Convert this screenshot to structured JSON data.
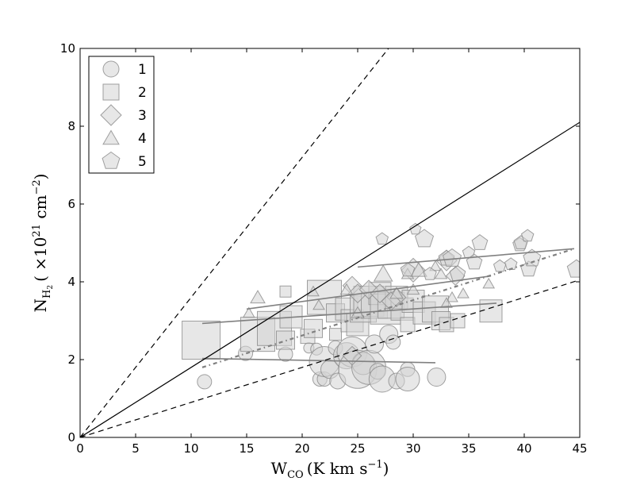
{
  "chart_data": {
    "type": "scatter",
    "title": "",
    "xlabel": {
      "main": "W",
      "sub": "CO",
      "unit_pre": "(K km s",
      "unit_sup": "−1",
      "unit_post": ")"
    },
    "ylabel": {
      "main": "N",
      "sub": "H",
      "subsub": "2",
      "unit_pre": "( ×10",
      "unit_sup1": "21",
      "unit_mid": " cm",
      "unit_sup2": "−2",
      "unit_post": ")"
    },
    "xlim": [
      0,
      45
    ],
    "ylim": [
      0,
      10
    ],
    "xticks": [
      0,
      5,
      10,
      15,
      20,
      25,
      30,
      35,
      40,
      45
    ],
    "yticks": [
      0,
      2,
      4,
      6,
      8,
      10
    ],
    "grid": false,
    "legend_placement": "top-left",
    "colors": {
      "marker_fill": "#d3d3d3",
      "marker_edge": "#8a8a8a",
      "fit_line": "#808080",
      "reference_line": "#000000"
    },
    "reference_lines": [
      {
        "slope": 0.36,
        "style": "dashed"
      },
      {
        "slope": 0.18,
        "style": "solid"
      },
      {
        "slope": 0.09,
        "style": "dashed"
      }
    ],
    "fit_lines": [
      {
        "series": "1",
        "x": [
          11,
          32
        ],
        "y": [
          2.03,
          1.92
        ],
        "style": "solid"
      },
      {
        "series": "2",
        "x": [
          11,
          37.5
        ],
        "y": [
          2.93,
          3.45
        ],
        "style": "solid"
      },
      {
        "series": "3",
        "x": [
          15,
          37
        ],
        "y": [
          3.3,
          4.15
        ],
        "style": "solid"
      },
      {
        "series": "4",
        "x": [
          11,
          44.5
        ],
        "y": [
          1.8,
          4.85
        ],
        "style": "dashdot"
      },
      {
        "series": "5",
        "x": [
          25,
          44.5
        ],
        "y": [
          4.38,
          4.85
        ],
        "style": "solid"
      }
    ],
    "series": [
      {
        "name": "1",
        "marker": "circle",
        "points": [
          [
            11.2,
            1.43,
            1
          ],
          [
            14.9,
            2.16,
            1
          ],
          [
            18.5,
            2.14,
            1
          ],
          [
            20.6,
            2.3,
            0.5
          ],
          [
            21.3,
            2.27,
            0.7
          ],
          [
            21.6,
            1.5,
            1
          ],
          [
            22,
            1.5,
            1
          ],
          [
            22,
            1.95,
            3
          ],
          [
            22.5,
            1.75,
            1.5
          ],
          [
            23,
            2.3,
            1
          ],
          [
            23.2,
            1.45,
            1.2
          ],
          [
            24,
            2.1,
            2.5
          ],
          [
            24.5,
            2.2,
            3
          ],
          [
            25,
            1.75,
            4
          ],
          [
            25.5,
            1.9,
            2
          ],
          [
            26,
            1.8,
            3.5
          ],
          [
            26.5,
            2.4,
            1.5
          ],
          [
            26.8,
            1.7,
            1.2
          ],
          [
            27.2,
            1.5,
            2.5
          ],
          [
            27.8,
            2.65,
            1.5
          ],
          [
            28.2,
            2.45,
            1
          ],
          [
            28.5,
            1.45,
            1.2
          ],
          [
            29.5,
            1.75,
            1
          ],
          [
            29.5,
            1.5,
            2.2
          ],
          [
            32.1,
            1.55,
            1.5
          ]
        ]
      },
      {
        "name": "2",
        "marker": "square",
        "points": [
          [
            10.9,
            2.5,
            4
          ],
          [
            16,
            2.65,
            3.5
          ],
          [
            17.5,
            2.8,
            3.5
          ],
          [
            18.5,
            2.5,
            1.5
          ],
          [
            18.5,
            3.75,
            0.6
          ],
          [
            19,
            3.1,
            2
          ],
          [
            20.5,
            2.6,
            1
          ],
          [
            21,
            2.8,
            1.5
          ],
          [
            22,
            3.6,
            3.5
          ],
          [
            23,
            2.65,
            0.7
          ],
          [
            23,
            3.2,
            1.5
          ],
          [
            24,
            3.3,
            2
          ],
          [
            24.5,
            3.0,
            2
          ],
          [
            25,
            2.9,
            2
          ],
          [
            25.5,
            3.3,
            2.5
          ],
          [
            26,
            3.5,
            3
          ],
          [
            26.5,
            3.4,
            2.5
          ],
          [
            27,
            3.7,
            2
          ],
          [
            27.5,
            3.3,
            3
          ],
          [
            28,
            3.4,
            2.5
          ],
          [
            28.5,
            3.6,
            2
          ],
          [
            29,
            3.3,
            2
          ],
          [
            29.5,
            2.9,
            1
          ],
          [
            30,
            3.5,
            2
          ],
          [
            31,
            3.2,
            2
          ],
          [
            32,
            3.3,
            2.5
          ],
          [
            32.5,
            3.0,
            1.5
          ],
          [
            33,
            2.9,
            1
          ],
          [
            34,
            3.0,
            1
          ],
          [
            37,
            3.25,
            2
          ]
        ]
      },
      {
        "name": "3",
        "marker": "diamond",
        "points": [
          [
            24.5,
            3.9,
            1
          ],
          [
            25,
            3.7,
            1
          ],
          [
            26,
            3.8,
            1
          ],
          [
            27,
            3.7,
            1
          ],
          [
            28.5,
            3.6,
            1
          ],
          [
            24.5,
            2.1,
            1
          ],
          [
            30,
            4.3,
            1.5
          ],
          [
            33,
            4.55,
            1.2
          ],
          [
            33.8,
            4.15,
            1
          ],
          [
            28,
            3.5,
            1
          ]
        ]
      },
      {
        "name": "4",
        "marker": "triangle",
        "points": [
          [
            15.2,
            3.2,
            0.6
          ],
          [
            16,
            3.6,
            1
          ],
          [
            21,
            3.75,
            0.6
          ],
          [
            21.5,
            3.4,
            0.6
          ],
          [
            24,
            3.8,
            0.7
          ],
          [
            25,
            3.2,
            0.8
          ],
          [
            27.3,
            4.2,
            1.5
          ],
          [
            29.5,
            4.2,
            0.7
          ],
          [
            30.5,
            4.3,
            1.2
          ],
          [
            32,
            4.4,
            0.6
          ],
          [
            32.5,
            4.2,
            0.7
          ],
          [
            33.5,
            3.6,
            0.6
          ],
          [
            34.5,
            3.7,
            0.6
          ],
          [
            36.8,
            3.95,
            0.6
          ],
          [
            30,
            3.8,
            0.7
          ],
          [
            28.5,
            3.7,
            0.8
          ],
          [
            33,
            3.45,
            0.6
          ]
        ]
      },
      {
        "name": "5",
        "marker": "pentagon",
        "points": [
          [
            27.2,
            5.1,
            0.6
          ],
          [
            30.2,
            5.35,
            0.5
          ],
          [
            31,
            5.1,
            1.3
          ],
          [
            33,
            4.6,
            1
          ],
          [
            33.5,
            4.6,
            1.3
          ],
          [
            35,
            4.75,
            0.6
          ],
          [
            35.5,
            4.5,
            1
          ],
          [
            36,
            5.0,
            1
          ],
          [
            37.8,
            4.4,
            0.6
          ],
          [
            38.8,
            4.45,
            0.6
          ],
          [
            39.6,
            4.95,
            0.8
          ],
          [
            39.7,
            5.0,
            0.8
          ],
          [
            40.3,
            5.18,
            0.6
          ],
          [
            40.4,
            4.32,
            1
          ],
          [
            40.7,
            4.6,
            1.2
          ],
          [
            44.7,
            4.32,
            1.3
          ],
          [
            31.5,
            4.2,
            0.7
          ],
          [
            29.5,
            4.3,
            0.8
          ],
          [
            34,
            4.2,
            1
          ]
        ]
      }
    ]
  }
}
